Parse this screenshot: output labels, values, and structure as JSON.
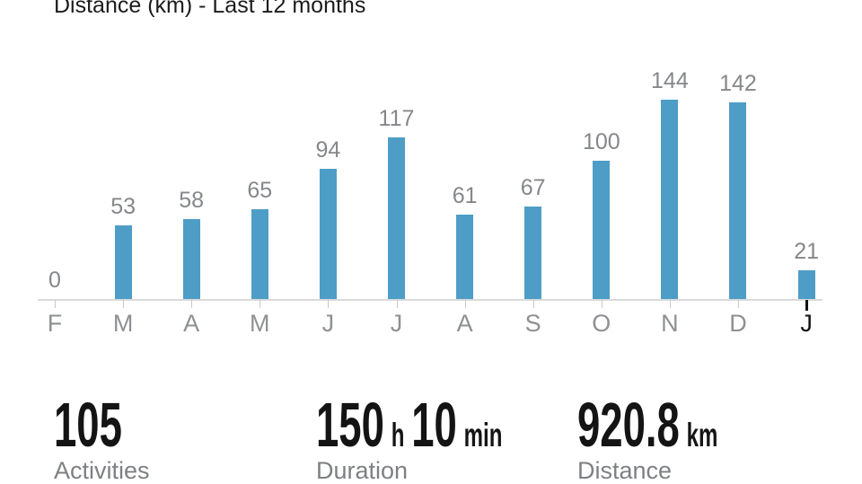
{
  "title": "Distance (km) - Last 12 months",
  "chart_data": {
    "type": "bar",
    "title": "Distance (km) - Last 12 months",
    "categories": [
      "F",
      "M",
      "A",
      "M",
      "J",
      "J",
      "A",
      "S",
      "O",
      "N",
      "D",
      "J"
    ],
    "values": [
      0,
      53,
      58,
      65,
      94,
      117,
      61,
      67,
      100,
      144,
      142,
      21
    ],
    "value_labels_shown": true,
    "highlighted_index": 11,
    "xlabel": "",
    "ylabel": "Distance (km)",
    "ylim": [
      0,
      190
    ],
    "grid": false,
    "legend": false,
    "bar_color": "#4e9dc6"
  },
  "stats": [
    {
      "label": "Activities",
      "parts": [
        {
          "text": "105",
          "size": "big"
        }
      ]
    },
    {
      "label": "Duration",
      "parts": [
        {
          "text": "150",
          "size": "big"
        },
        {
          "text": "h",
          "size": "small"
        },
        {
          "text": "10",
          "size": "big"
        },
        {
          "text": "min",
          "size": "small"
        }
      ]
    },
    {
      "label": "Distance",
      "parts": [
        {
          "text": "920.8",
          "size": "big"
        },
        {
          "text": "km",
          "size": "small"
        }
      ]
    }
  ],
  "colors": {
    "bar": "#4e9dc6",
    "axis_line": "#dadada",
    "tick": "#c9c9c9",
    "value_label": "#85878a",
    "month_label": "#8e9093",
    "highlight": "#121212",
    "title_text": "#1c1c1e",
    "stat_number": "#141414",
    "stat_label": "#7e8083",
    "background": "#ffffff"
  }
}
